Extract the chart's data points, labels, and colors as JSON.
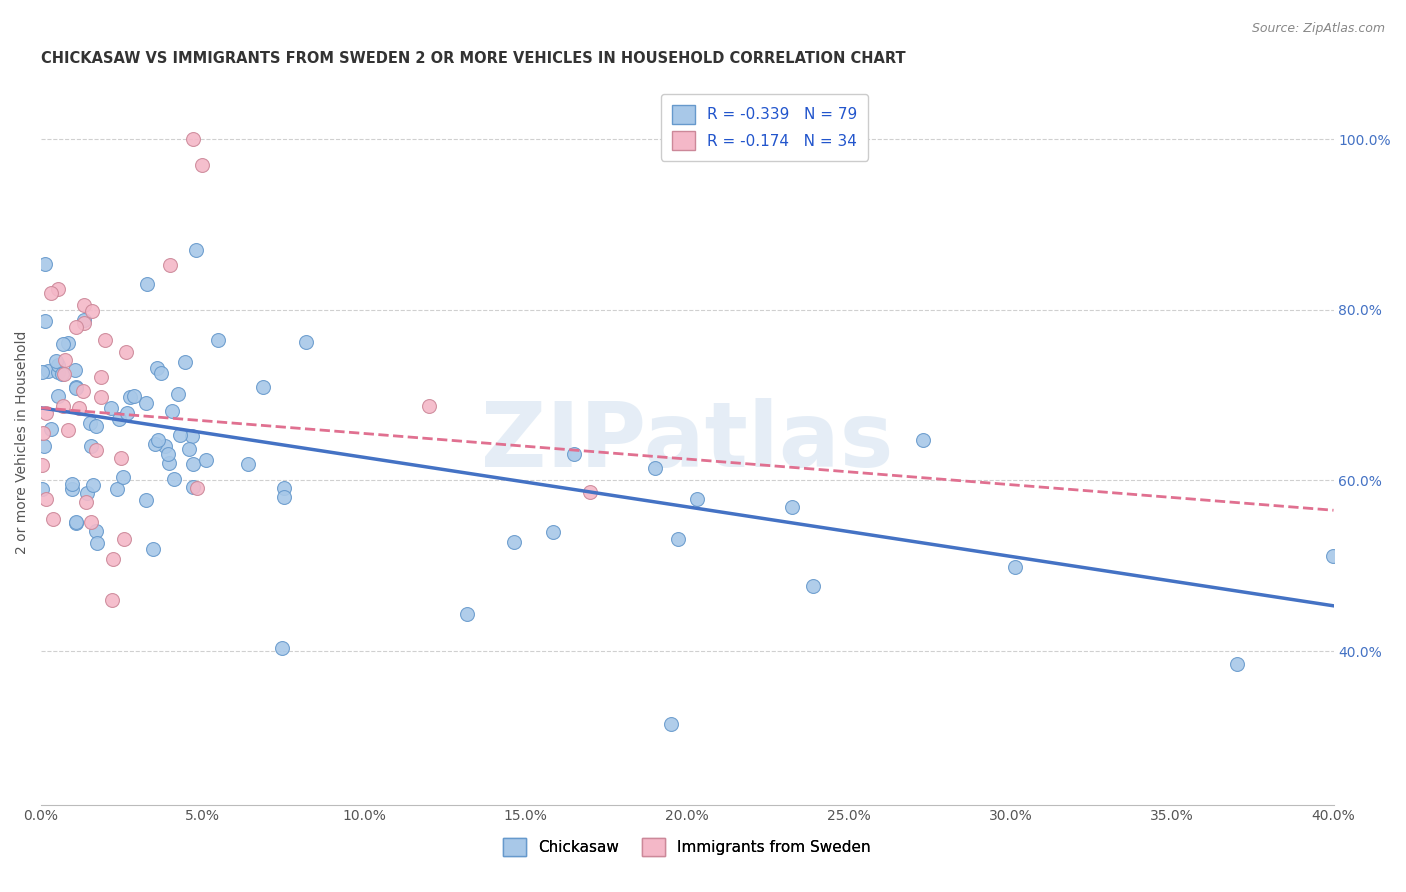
{
  "title": "CHICKASAW VS IMMIGRANTS FROM SWEDEN 2 OR MORE VEHICLES IN HOUSEHOLD CORRELATION CHART",
  "source": "Source: ZipAtlas.com",
  "ylabel_label": "2 or more Vehicles in Household",
  "watermark": "ZIPatlas",
  "chickasaw_color": "#a8c8e8",
  "chickasaw_line_color": "#4472c4",
  "chickasaw_edge_color": "#6699cc",
  "sweden_color": "#f4b8c8",
  "sweden_line_color": "#e07090",
  "sweden_edge_color": "#cc8899",
  "chickasaw_label": "Chickasaw",
  "sweden_label": "Immigrants from Sweden",
  "R_chick": -0.339,
  "N_chick": 79,
  "R_swe": -0.174,
  "N_swe": 34,
  "xmin": 0.0,
  "xmax": 0.4,
  "ymin": 0.22,
  "ymax": 1.07,
  "yticks": [
    0.4,
    0.6,
    0.8,
    1.0
  ],
  "xticks": [
    0.0,
    0.05,
    0.1,
    0.15,
    0.2,
    0.25,
    0.3,
    0.35,
    0.4
  ],
  "legend_text_color": "#2255cc",
  "right_axis_color": "#4472c4",
  "title_color": "#333333",
  "source_color": "#888888",
  "grid_color": "#d0d0d0",
  "marker_size": 100,
  "chick_intercept": 0.685,
  "chick_slope": -0.58,
  "swe_intercept": 0.685,
  "swe_slope": -0.3
}
